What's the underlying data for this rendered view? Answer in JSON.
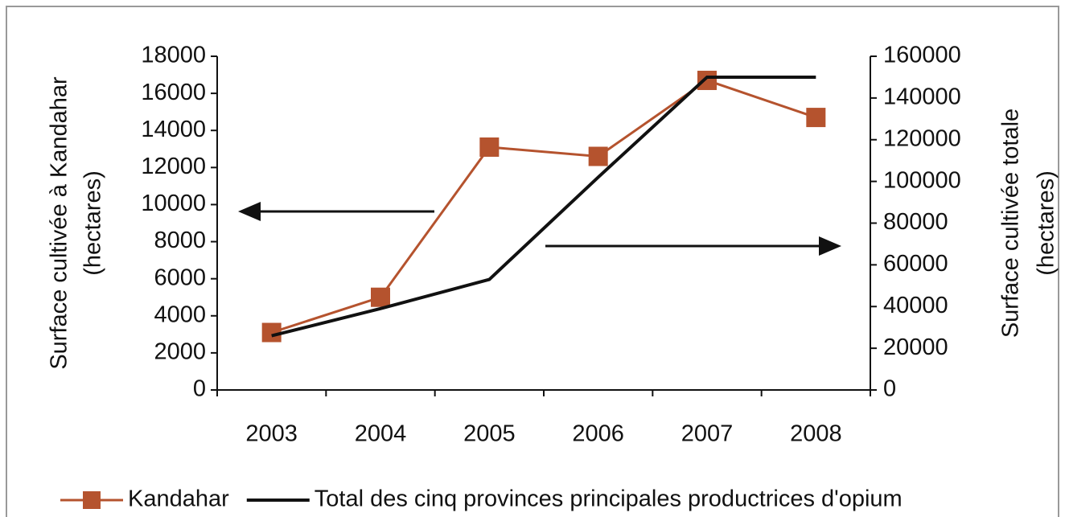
{
  "chart_data": {
    "type": "line",
    "categories": [
      "2003",
      "2004",
      "2005",
      "2006",
      "2007",
      "2008"
    ],
    "ylabel": [
      "Surface cultivée à Kandahar",
      "(hectares)"
    ],
    "y2label": [
      "Surface cultivée totale",
      "(hectares)"
    ],
    "ylim": [
      0,
      18000
    ],
    "yticks": [
      0,
      2000,
      4000,
      6000,
      8000,
      10000,
      12000,
      14000,
      16000,
      18000
    ],
    "y2lim": [
      0,
      160000
    ],
    "y2ticks": [
      0,
      20000,
      40000,
      60000,
      80000,
      100000,
      120000,
      140000,
      160000
    ],
    "series": [
      {
        "name": "Kandahar",
        "color": "#b5532e",
        "marker": "square",
        "values": [
          3100,
          5000,
          13100,
          12600,
          16700,
          14700
        ]
      },
      {
        "name": "Total des cinq provinces principales productrices d'opium",
        "color": "#111111",
        "axis": "y2",
        "values": [
          26000,
          39000,
          53000,
          102000,
          150000,
          150000
        ]
      }
    ]
  }
}
